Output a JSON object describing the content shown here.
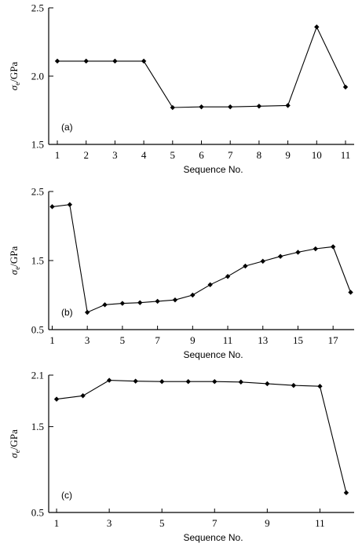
{
  "chart_data": [
    {
      "type": "line",
      "panel_label": "(a)",
      "xlabel": "Sequence No.",
      "ylabel": {
        "main": "σ",
        "sub": "e",
        "unit": "/GPa"
      },
      "ylim": [
        1.5,
        2.5
      ],
      "yticks": [
        "1.5",
        "2.0",
        "2.5"
      ],
      "yticks_values": [
        1.5,
        2.0,
        2.5
      ],
      "xlim": [
        0.7,
        11.3
      ],
      "xticks": [
        "1",
        "2",
        "3",
        "4",
        "5",
        "6",
        "7",
        "8",
        "9",
        "10",
        "11"
      ],
      "xticks_values": [
        1,
        2,
        3,
        4,
        5,
        6,
        7,
        8,
        9,
        10,
        11
      ],
      "x": [
        1,
        2,
        3,
        4,
        5,
        6,
        7,
        8,
        9,
        10,
        11
      ],
      "y": [
        2.11,
        2.11,
        2.11,
        2.11,
        1.77,
        1.775,
        1.775,
        1.78,
        1.785,
        2.36,
        1.92
      ]
    },
    {
      "type": "line",
      "panel_label": "(b)",
      "xlabel": "Sequence No.",
      "ylabel": {
        "main": "σ",
        "sub": "e",
        "unit": "/GPa"
      },
      "ylim": [
        0.5,
        2.5
      ],
      "yticks": [
        "0.5",
        "1.5",
        "2.5"
      ],
      "yticks_values": [
        0.5,
        1.5,
        2.5
      ],
      "xlim": [
        0.8,
        18.2
      ],
      "xticks": [
        "1",
        "3",
        "5",
        "7",
        "9",
        "11",
        "13",
        "15",
        "17"
      ],
      "xticks_values": [
        1,
        3,
        5,
        7,
        9,
        11,
        13,
        15,
        17
      ],
      "x": [
        1,
        2,
        3,
        4,
        5,
        6,
        7,
        8,
        9,
        10,
        11,
        12,
        13,
        14,
        15,
        16,
        17,
        18
      ],
      "y": [
        2.28,
        2.31,
        0.75,
        0.86,
        0.88,
        0.89,
        0.91,
        0.93,
        1.0,
        1.15,
        1.27,
        1.42,
        1.49,
        1.56,
        1.62,
        1.67,
        1.7,
        1.04
      ]
    },
    {
      "type": "line",
      "panel_label": "(c)",
      "xlabel": "Sequence No.",
      "ylabel": {
        "main": "σ",
        "sub": "e",
        "unit": "/GPa"
      },
      "ylim": [
        0.5,
        2.1
      ],
      "yticks": [
        "0.5",
        "1.5",
        "2.1"
      ],
      "yticks_values": [
        0.5,
        1.5,
        2.1
      ],
      "xlim": [
        0.7,
        12.3
      ],
      "xticks": [
        "1",
        "3",
        "5",
        "7",
        "9",
        "11"
      ],
      "xticks_values": [
        1,
        3,
        5,
        7,
        9,
        11
      ],
      "x": [
        1,
        2,
        3,
        4,
        5,
        6,
        7,
        8,
        9,
        10,
        11,
        12
      ],
      "y": [
        1.82,
        1.86,
        2.04,
        2.03,
        2.025,
        2.025,
        2.025,
        2.02,
        2.0,
        1.98,
        1.97,
        0.73
      ]
    }
  ]
}
